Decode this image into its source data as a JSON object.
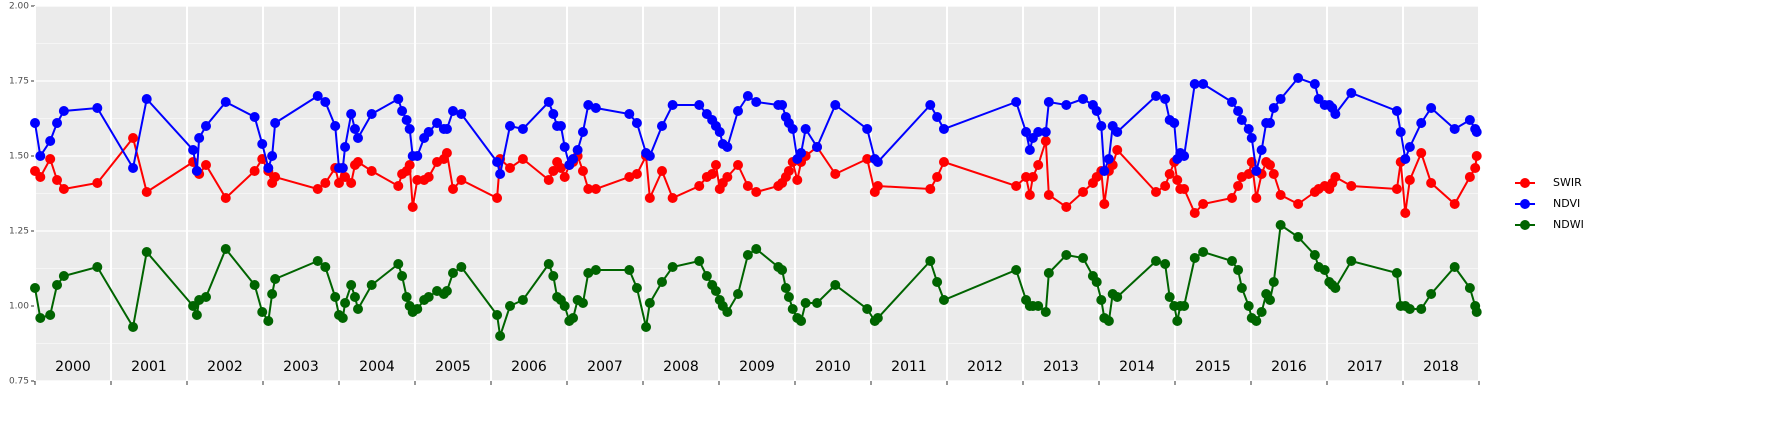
{
  "chart_data": {
    "type": "line",
    "x": [
      2000.0,
      2000.07,
      2000.2,
      2000.29,
      2000.38,
      2000.82,
      2001.29,
      2001.47,
      2002.08,
      2002.13,
      2002.16,
      2002.25,
      2002.51,
      2002.89,
      2002.99,
      2003.07,
      2003.12,
      2003.16,
      2003.72,
      2003.82,
      2003.95,
      2004.0,
      2004.05,
      2004.08,
      2004.16,
      2004.21,
      2004.25,
      2004.43,
      2004.78,
      2004.83,
      2004.89,
      2004.93,
      2004.97,
      2005.03,
      2005.12,
      2005.18,
      2005.29,
      2005.38,
      2005.42,
      2005.5,
      2005.61,
      2006.08,
      2006.12,
      2006.25,
      2006.42,
      2006.76,
      2006.82,
      2006.87,
      2006.92,
      2006.97,
      2007.03,
      2007.08,
      2007.14,
      2007.21,
      2007.28,
      2007.38,
      2007.82,
      2007.92,
      2008.04,
      2008.09,
      2008.25,
      2008.39,
      2008.74,
      2008.84,
      2008.91,
      2008.96,
      2009.01,
      2009.05,
      2009.11,
      2009.25,
      2009.38,
      2009.49,
      2009.78,
      2009.83,
      2009.88,
      2009.92,
      2009.97,
      2010.03,
      2010.08,
      2010.14,
      2010.29,
      2010.53,
      2010.95,
      2011.05,
      2011.09,
      2011.78,
      2011.87,
      2011.96,
      2012.91,
      2013.04,
      2013.09,
      2013.13,
      2013.2,
      2013.3,
      2013.34,
      2013.57,
      2013.79,
      2013.92,
      2013.97,
      2014.03,
      2014.07,
      2014.13,
      2014.18,
      2014.24,
      2014.75,
      2014.87,
      2014.93,
      2014.99,
      2015.03,
      2015.07,
      2015.12,
      2015.26,
      2015.37,
      2015.75,
      2015.83,
      2015.88,
      2015.97,
      2016.01,
      2016.07,
      2016.14,
      2016.2,
      2016.25,
      2016.3,
      2016.39,
      2016.62,
      2016.84,
      2016.89,
      2016.97,
      2017.03,
      2017.07,
      2017.11,
      2017.32,
      2017.92,
      2017.97,
      2018.03,
      2018.09,
      2018.24,
      2018.37,
      2018.68,
      2018.88,
      2018.95,
      2018.97
    ],
    "series": [
      {
        "name": "SWIR",
        "color": "#ff0000",
        "values": [
          1.45,
          1.43,
          1.49,
          1.42,
          1.39,
          1.41,
          1.56,
          1.38,
          1.48,
          1.45,
          1.44,
          1.47,
          1.36,
          1.45,
          1.49,
          1.45,
          1.41,
          1.43,
          1.39,
          1.41,
          1.46,
          1.41,
          1.46,
          1.43,
          1.41,
          1.47,
          1.48,
          1.45,
          1.4,
          1.44,
          1.45,
          1.47,
          1.33,
          1.42,
          1.42,
          1.43,
          1.48,
          1.49,
          1.51,
          1.39,
          1.42,
          1.36,
          1.49,
          1.46,
          1.49,
          1.42,
          1.45,
          1.48,
          1.46,
          1.43,
          1.47,
          1.48,
          1.5,
          1.45,
          1.39,
          1.39,
          1.43,
          1.44,
          1.5,
          1.36,
          1.45,
          1.36,
          1.4,
          1.43,
          1.44,
          1.47,
          1.39,
          1.41,
          1.43,
          1.47,
          1.4,
          1.38,
          1.4,
          1.41,
          1.43,
          1.45,
          1.48,
          1.42,
          1.48,
          1.5,
          1.53,
          1.44,
          1.49,
          1.38,
          1.4,
          1.39,
          1.43,
          1.48,
          1.4,
          1.43,
          1.37,
          1.43,
          1.47,
          1.55,
          1.37,
          1.33,
          1.38,
          1.41,
          1.43,
          1.45,
          1.34,
          1.45,
          1.47,
          1.52,
          1.38,
          1.4,
          1.44,
          1.48,
          1.42,
          1.39,
          1.39,
          1.31,
          1.34,
          1.36,
          1.4,
          1.43,
          1.44,
          1.48,
          1.36,
          1.44,
          1.48,
          1.47,
          1.44,
          1.37,
          1.34,
          1.38,
          1.39,
          1.4,
          1.39,
          1.41,
          1.43,
          1.4,
          1.39,
          1.48,
          1.31,
          1.42,
          1.51,
          1.41,
          1.34,
          1.43,
          1.46,
          1.5
        ]
      },
      {
        "name": "NDVI",
        "color": "#0000ff",
        "values": [
          1.61,
          1.5,
          1.55,
          1.61,
          1.65,
          1.66,
          1.46,
          1.69,
          1.52,
          1.45,
          1.56,
          1.6,
          1.68,
          1.63,
          1.54,
          1.46,
          1.5,
          1.61,
          1.7,
          1.68,
          1.6,
          1.46,
          1.46,
          1.53,
          1.64,
          1.59,
          1.56,
          1.64,
          1.69,
          1.65,
          1.62,
          1.59,
          1.5,
          1.5,
          1.56,
          1.58,
          1.61,
          1.59,
          1.59,
          1.65,
          1.64,
          1.48,
          1.44,
          1.6,
          1.59,
          1.68,
          1.64,
          1.6,
          1.6,
          1.53,
          1.47,
          1.49,
          1.52,
          1.58,
          1.67,
          1.66,
          1.64,
          1.61,
          1.51,
          1.5,
          1.6,
          1.67,
          1.67,
          1.64,
          1.62,
          1.6,
          1.58,
          1.54,
          1.53,
          1.65,
          1.7,
          1.68,
          1.67,
          1.67,
          1.63,
          1.61,
          1.59,
          1.49,
          1.51,
          1.59,
          1.53,
          1.67,
          1.59,
          1.49,
          1.48,
          1.67,
          1.63,
          1.59,
          1.68,
          1.58,
          1.52,
          1.56,
          1.58,
          1.58,
          1.68,
          1.67,
          1.69,
          1.67,
          1.65,
          1.6,
          1.45,
          1.49,
          1.6,
          1.58,
          1.7,
          1.69,
          1.62,
          1.61,
          1.49,
          1.51,
          1.5,
          1.74,
          1.74,
          1.68,
          1.65,
          1.62,
          1.59,
          1.56,
          1.45,
          1.52,
          1.61,
          1.61,
          1.66,
          1.69,
          1.76,
          1.74,
          1.69,
          1.67,
          1.67,
          1.66,
          1.64,
          1.71,
          1.65,
          1.58,
          1.49,
          1.53,
          1.61,
          1.66,
          1.59,
          1.62,
          1.59,
          1.58
        ]
      },
      {
        "name": "NDWI",
        "color": "#006400",
        "values": [
          1.06,
          0.96,
          0.97,
          1.07,
          1.1,
          1.13,
          0.93,
          1.18,
          1.0,
          0.97,
          1.02,
          1.03,
          1.19,
          1.07,
          0.98,
          0.95,
          1.04,
          1.09,
          1.15,
          1.13,
          1.03,
          0.97,
          0.96,
          1.01,
          1.07,
          1.03,
          0.99,
          1.07,
          1.14,
          1.1,
          1.03,
          1.0,
          0.98,
          0.99,
          1.02,
          1.03,
          1.05,
          1.04,
          1.05,
          1.11,
          1.13,
          0.97,
          0.9,
          1.0,
          1.02,
          1.14,
          1.1,
          1.03,
          1.02,
          1.0,
          0.95,
          0.96,
          1.02,
          1.01,
          1.11,
          1.12,
          1.12,
          1.06,
          0.93,
          1.01,
          1.08,
          1.13,
          1.15,
          1.1,
          1.07,
          1.05,
          1.02,
          1.0,
          0.98,
          1.04,
          1.17,
          1.19,
          1.13,
          1.12,
          1.06,
          1.03,
          0.99,
          0.96,
          0.95,
          1.01,
          1.01,
          1.07,
          0.99,
          0.95,
          0.96,
          1.15,
          1.08,
          1.02,
          1.12,
          1.02,
          1.0,
          1.0,
          1.0,
          0.98,
          1.11,
          1.17,
          1.16,
          1.1,
          1.08,
          1.02,
          0.96,
          0.95,
          1.04,
          1.03,
          1.15,
          1.14,
          1.03,
          1.0,
          0.95,
          1.0,
          1.0,
          1.16,
          1.18,
          1.15,
          1.12,
          1.06,
          1.0,
          0.96,
          0.95,
          0.98,
          1.04,
          1.02,
          1.08,
          1.27,
          1.23,
          1.17,
          1.13,
          1.12,
          1.08,
          1.07,
          1.06,
          1.15,
          1.11,
          1.0,
          1.0,
          0.99,
          0.99,
          1.04,
          1.13,
          1.06,
          1.0,
          0.98
        ]
      }
    ],
    "xlim": [
      2000,
      2019
    ],
    "xticks": [
      2000,
      2001,
      2002,
      2003,
      2004,
      2005,
      2006,
      2007,
      2008,
      2009,
      2010,
      2011,
      2012,
      2013,
      2014,
      2015,
      2016,
      2017,
      2018
    ],
    "ylim": [
      0.75,
      2.0
    ],
    "yticks": [
      0.75,
      {
        "value": 1.0,
        "label": "1.00"
      },
      1.25,
      {
        "value": 1.5,
        "label": "1.50"
      },
      1.75,
      {
        "value": 2.0,
        "label": "2.00"
      }
    ],
    "grid": true,
    "legend": "right"
  }
}
